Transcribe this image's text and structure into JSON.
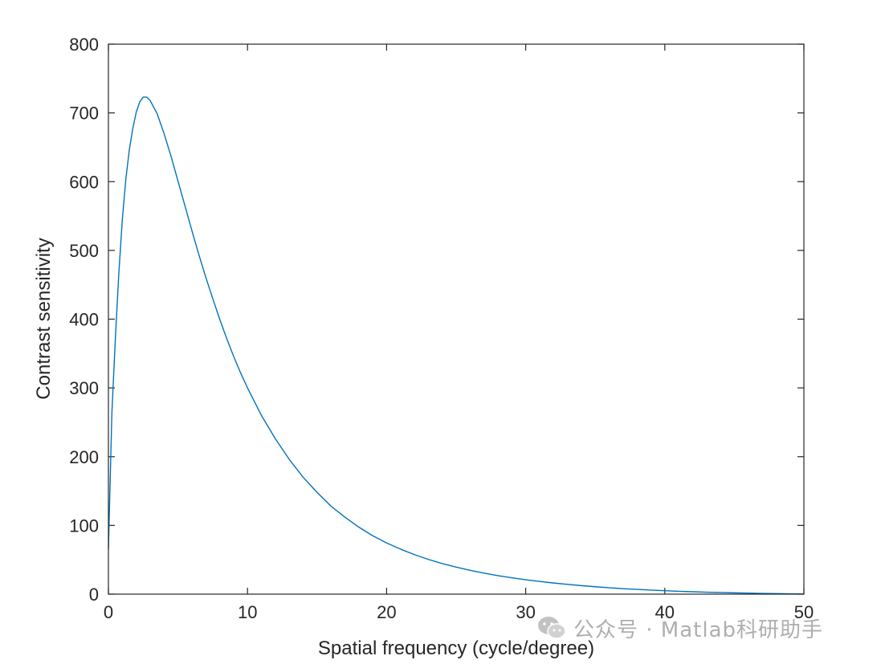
{
  "chart_data": {
    "type": "line",
    "title": "",
    "xlabel": "Spatial frequency (cycle/degree)",
    "ylabel": "Contrast sensitivity",
    "xlim": [
      0,
      50
    ],
    "ylim": [
      0,
      800
    ],
    "xticks": [
      0,
      10,
      20,
      30,
      40,
      50
    ],
    "yticks": [
      0,
      100,
      200,
      300,
      400,
      500,
      600,
      700,
      800
    ],
    "xtick_labels": [
      "0",
      "10",
      "20",
      "30",
      "40",
      "50"
    ],
    "ytick_labels": [
      "0",
      "100",
      "200",
      "300",
      "400",
      "500",
      "600",
      "700",
      "800"
    ],
    "grid": false,
    "box": true,
    "series": [
      {
        "color": "#0072BD",
        "x": [
          0,
          0.25,
          0.5,
          0.75,
          1,
          1.25,
          1.5,
          1.75,
          2,
          2.25,
          2.5,
          2.75,
          3,
          3.5,
          4,
          4.5,
          5,
          5.5,
          6,
          6.5,
          7,
          7.5,
          8,
          8.5,
          9,
          9.5,
          10,
          11,
          12,
          13,
          14,
          15,
          16,
          17,
          18,
          19,
          20,
          21,
          22,
          23,
          24,
          25,
          26,
          27,
          28,
          29,
          30,
          31,
          32,
          33,
          34,
          35,
          36,
          37,
          38,
          39,
          40,
          41,
          42,
          43,
          44,
          45,
          46,
          47,
          48,
          49,
          50
        ],
        "y": [
          65,
          264,
          372,
          467,
          545,
          603,
          646,
          677,
          701,
          716,
          723,
          723,
          718,
          699,
          670,
          637,
          601,
          565,
          529,
          494,
          461,
          430,
          400,
          372,
          346,
          322,
          300,
          260,
          226,
          196,
          170,
          148,
          128,
          112,
          97.5,
          85,
          74.5,
          65.5,
          57.5,
          50.5,
          44.5,
          39.3,
          34.7,
          30.6,
          27,
          23.8,
          21,
          18.5,
          16.2,
          14.2,
          12.4,
          10.8,
          9.3,
          8.0,
          6.9,
          5.9,
          5.0,
          4.2,
          3.5,
          2.9,
          2.4,
          1.9,
          1.5,
          1.1,
          0.8,
          0.5,
          0.2
        ]
      }
    ]
  },
  "watermark": {
    "text": "公众号 · Matlab科研助手",
    "icon": "wechat-icon"
  }
}
